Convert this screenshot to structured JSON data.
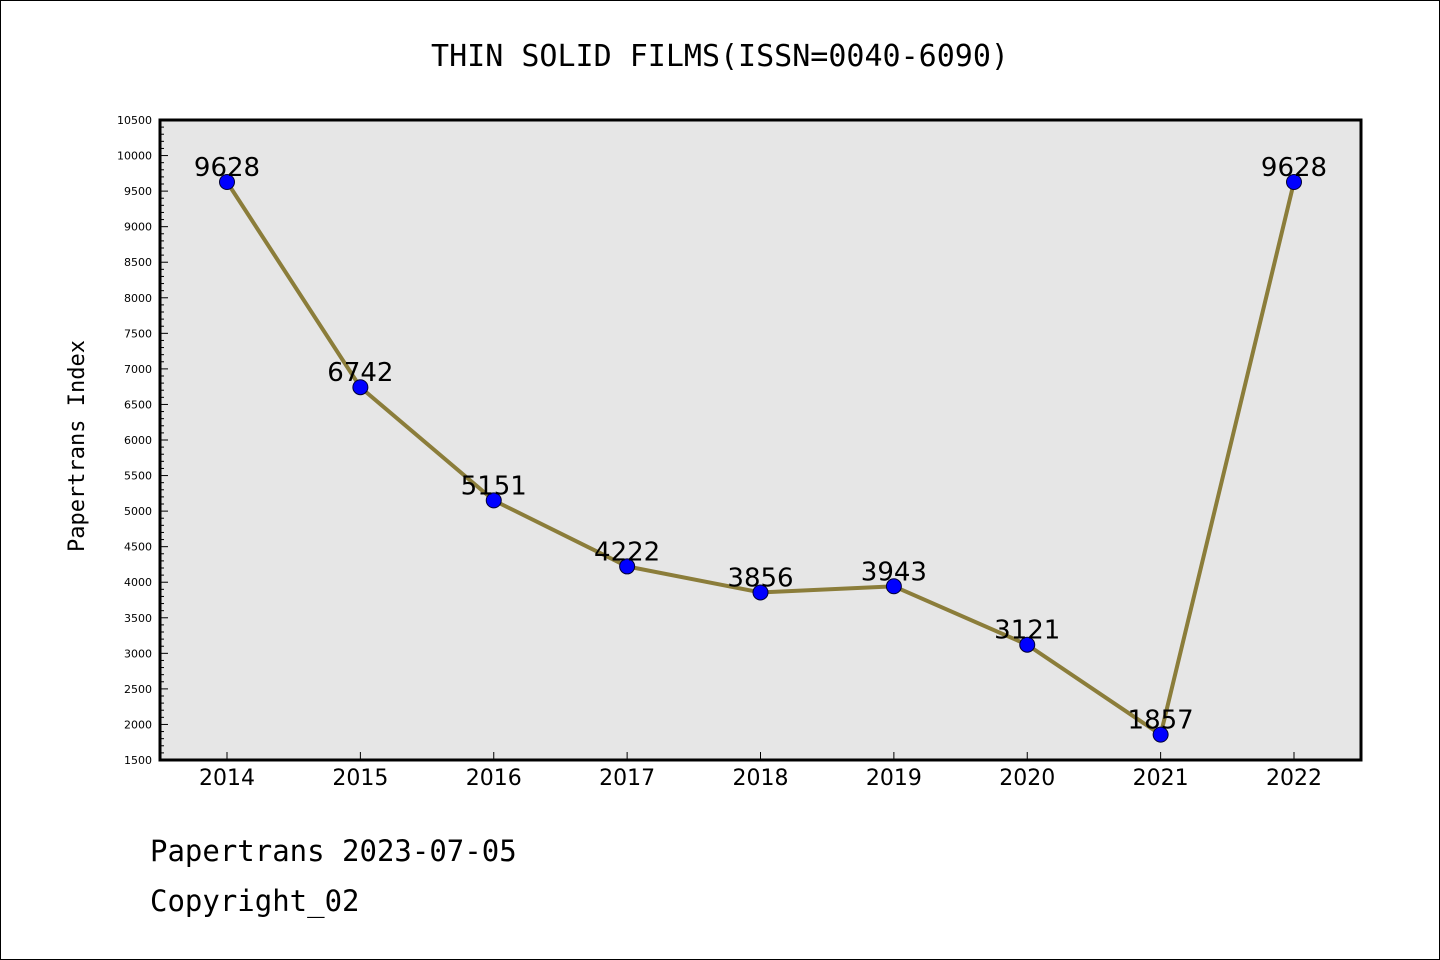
{
  "chart_data": {
    "type": "line",
    "title": "THIN SOLID FILMS(ISSN=0040-6090)",
    "ylabel": "Papertrans Index",
    "xlabel": "",
    "categories": [
      "2014",
      "2015",
      "2016",
      "2017",
      "2018",
      "2019",
      "2020",
      "2021",
      "2022"
    ],
    "values": [
      9628,
      6742,
      5151,
      4222,
      3856,
      3943,
      3121,
      1857,
      9628
    ],
    "data_labels": [
      "9628",
      "6742",
      "5151",
      "4222",
      "3856",
      "3943",
      "3121",
      "1857",
      "9628"
    ],
    "ylim": [
      1500,
      10500
    ],
    "yticks": [
      1500,
      2000,
      2500,
      3000,
      3500,
      4000,
      4500,
      5000,
      5500,
      6000,
      6500,
      7000,
      7500,
      8000,
      8500,
      9000,
      9500,
      10000,
      10500
    ],
    "grid": false,
    "line_color": "#8b7d3a",
    "marker_color": "#0000ff",
    "plot_background": "#e6e6e6"
  },
  "footer": {
    "date_line": "Papertrans 2023-07-05",
    "copyright": "Copyright_02"
  }
}
